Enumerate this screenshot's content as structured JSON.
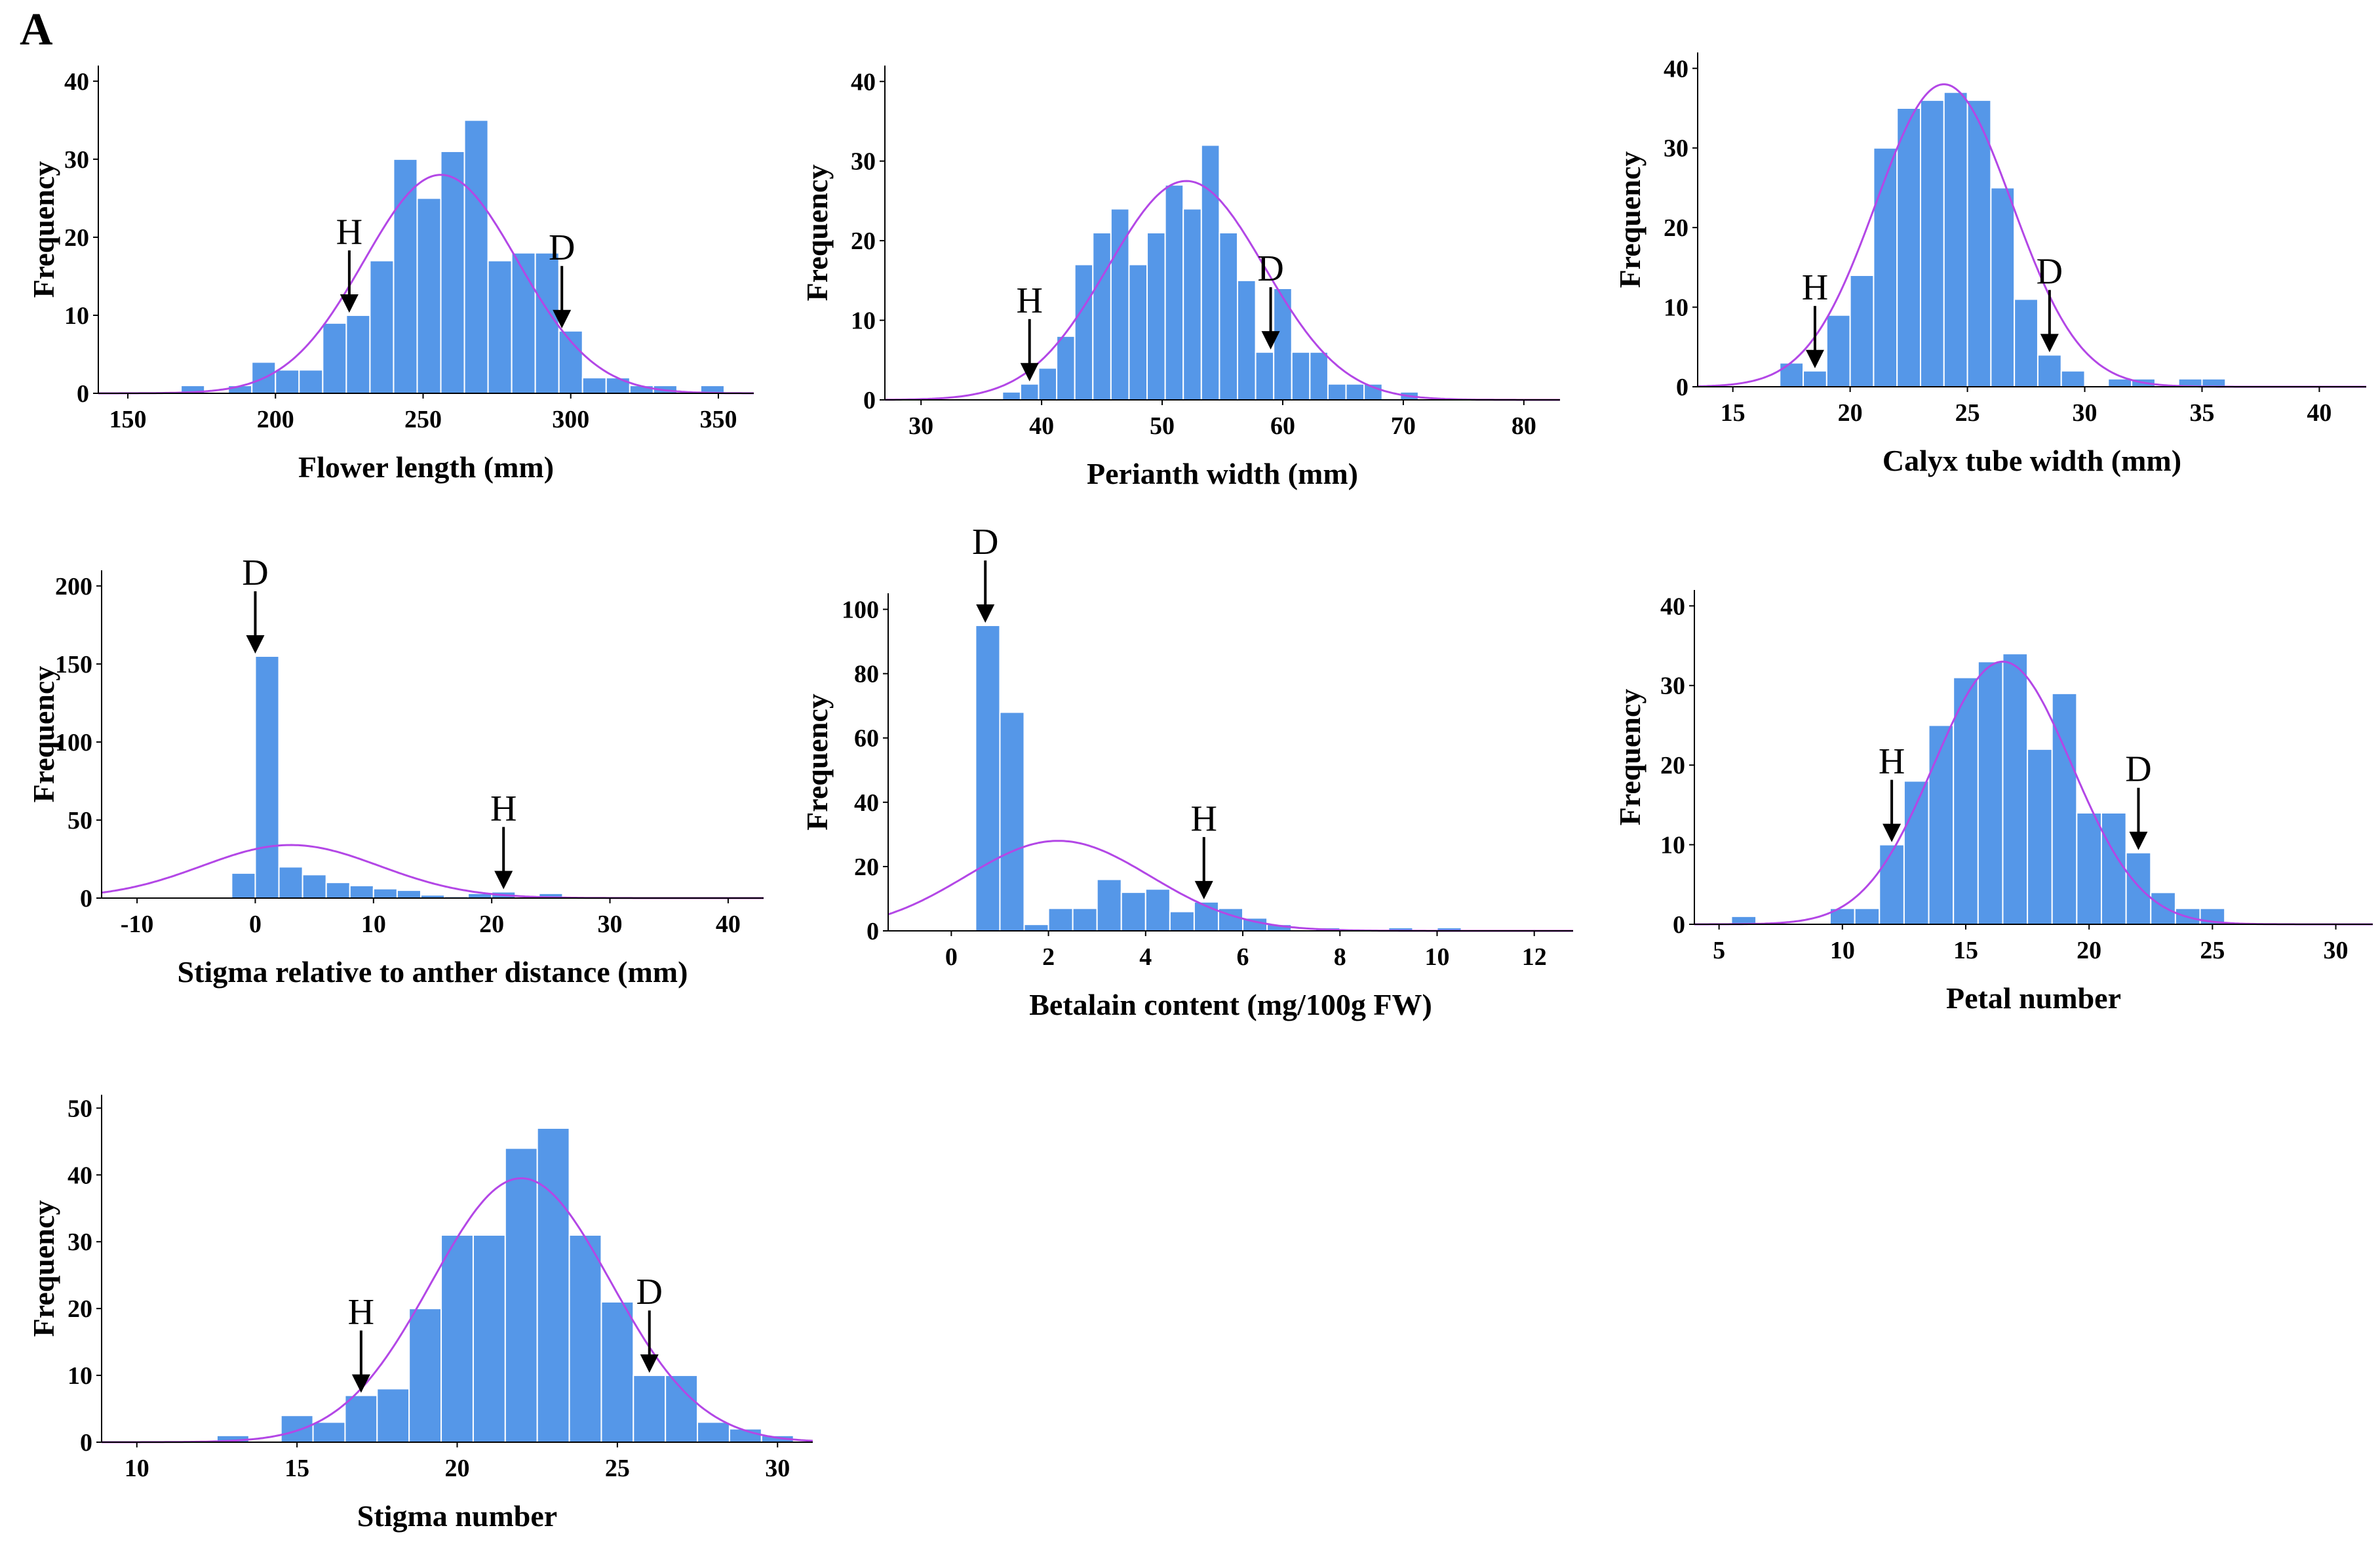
{
  "panel_label": "A",
  "style": {
    "bar_color": "#5597E8",
    "bar_edge": "#ffffff",
    "curve_color": "#B347E6",
    "axis_color": "#000000"
  },
  "chart_data": [
    {
      "id": "flower-length",
      "type": "bar",
      "subtype": "histogram-with-normal-curve",
      "xlabel": "Flower length (mm)",
      "ylabel": "Frequency",
      "xlim": [
        140,
        362
      ],
      "ylim": [
        0,
        42
      ],
      "xticks": [
        150,
        200,
        250,
        300,
        350
      ],
      "yticks": [
        0,
        10,
        20,
        30,
        40
      ],
      "bin_width": 8,
      "bins": [
        {
          "x": 172,
          "count": 1
        },
        {
          "x": 180,
          "count": 0
        },
        {
          "x": 188,
          "count": 1
        },
        {
          "x": 196,
          "count": 4
        },
        {
          "x": 204,
          "count": 3
        },
        {
          "x": 212,
          "count": 3
        },
        {
          "x": 220,
          "count": 9
        },
        {
          "x": 228,
          "count": 10
        },
        {
          "x": 236,
          "count": 17
        },
        {
          "x": 244,
          "count": 30
        },
        {
          "x": 252,
          "count": 25
        },
        {
          "x": 260,
          "count": 31
        },
        {
          "x": 268,
          "count": 35
        },
        {
          "x": 276,
          "count": 17
        },
        {
          "x": 284,
          "count": 18
        },
        {
          "x": 292,
          "count": 18
        },
        {
          "x": 300,
          "count": 8
        },
        {
          "x": 308,
          "count": 2
        },
        {
          "x": 316,
          "count": 2
        },
        {
          "x": 324,
          "count": 1
        },
        {
          "x": 332,
          "count": 1
        },
        {
          "x": 340,
          "count": 0
        },
        {
          "x": 348,
          "count": 1
        }
      ],
      "normal_curve": {
        "mean": 256,
        "sd": 26,
        "peak": 28
      },
      "markers": [
        {
          "label": "H",
          "x": 225,
          "y": 10
        },
        {
          "label": "D",
          "x": 297,
          "y": 8
        }
      ]
    },
    {
      "id": "perianth-width",
      "type": "bar",
      "subtype": "histogram-with-normal-curve",
      "xlabel": "Perianth width (mm)",
      "ylabel": "Frequency",
      "xlim": [
        27,
        83
      ],
      "ylim": [
        0,
        42
      ],
      "xticks": [
        30,
        40,
        50,
        60,
        70,
        80
      ],
      "yticks": [
        0,
        10,
        20,
        30,
        40
      ],
      "bin_width": 1.5,
      "bins": [
        {
          "x": 37.5,
          "count": 1
        },
        {
          "x": 39,
          "count": 2
        },
        {
          "x": 40.5,
          "count": 4
        },
        {
          "x": 42,
          "count": 8
        },
        {
          "x": 43.5,
          "count": 17
        },
        {
          "x": 45,
          "count": 21
        },
        {
          "x": 46.5,
          "count": 24
        },
        {
          "x": 48,
          "count": 17
        },
        {
          "x": 49.5,
          "count": 21
        },
        {
          "x": 51,
          "count": 27
        },
        {
          "x": 52.5,
          "count": 24
        },
        {
          "x": 54,
          "count": 32
        },
        {
          "x": 55.5,
          "count": 21
        },
        {
          "x": 57,
          "count": 15
        },
        {
          "x": 58.5,
          "count": 6
        },
        {
          "x": 60,
          "count": 14
        },
        {
          "x": 61.5,
          "count": 6
        },
        {
          "x": 63,
          "count": 6
        },
        {
          "x": 64.5,
          "count": 2
        },
        {
          "x": 66,
          "count": 2
        },
        {
          "x": 67.5,
          "count": 2
        },
        {
          "x": 69,
          "count": 0
        },
        {
          "x": 70.5,
          "count": 1
        }
      ],
      "normal_curve": {
        "mean": 52,
        "sd": 6.5,
        "peak": 27.5
      },
      "markers": [
        {
          "label": "H",
          "x": 39,
          "y": 2
        },
        {
          "label": "D",
          "x": 59,
          "y": 6
        }
      ]
    },
    {
      "id": "calyx-tube-width",
      "type": "bar",
      "subtype": "histogram-with-normal-curve",
      "xlabel": "Calyx tube width (mm)",
      "ylabel": "Frequency",
      "xlim": [
        13.5,
        42
      ],
      "ylim": [
        0,
        42
      ],
      "xticks": [
        15,
        20,
        25,
        30,
        35,
        40
      ],
      "yticks": [
        0,
        10,
        20,
        30,
        40
      ],
      "bin_width": 1,
      "bins": [
        {
          "x": 17.5,
          "count": 3
        },
        {
          "x": 18.5,
          "count": 2
        },
        {
          "x": 19.5,
          "count": 9
        },
        {
          "x": 20.5,
          "count": 14
        },
        {
          "x": 21.5,
          "count": 30
        },
        {
          "x": 22.5,
          "count": 35
        },
        {
          "x": 23.5,
          "count": 36
        },
        {
          "x": 24.5,
          "count": 37
        },
        {
          "x": 25.5,
          "count": 36
        },
        {
          "x": 26.5,
          "count": 25
        },
        {
          "x": 27.5,
          "count": 11
        },
        {
          "x": 28.5,
          "count": 4
        },
        {
          "x": 29.5,
          "count": 2
        },
        {
          "x": 30.5,
          "count": 0
        },
        {
          "x": 31.5,
          "count": 1
        },
        {
          "x": 32.5,
          "count": 1
        },
        {
          "x": 33.5,
          "count": 0
        },
        {
          "x": 34.5,
          "count": 1
        },
        {
          "x": 35.5,
          "count": 1
        }
      ],
      "normal_curve": {
        "mean": 24,
        "sd": 2.9,
        "peak": 38
      },
      "markers": [
        {
          "label": "H",
          "x": 18.5,
          "y": 2
        },
        {
          "label": "D",
          "x": 28.5,
          "y": 4
        }
      ]
    },
    {
      "id": "stigma-anther-distance",
      "type": "bar",
      "subtype": "histogram-with-normal-curve",
      "xlabel": "Stigma relative to anther distance (mm)",
      "ylabel": "Frequency",
      "xlim": [
        -13,
        43
      ],
      "ylim": [
        0,
        210
      ],
      "xticks": [
        -10,
        0,
        10,
        20,
        30,
        40
      ],
      "yticks": [
        0,
        50,
        100,
        150,
        200
      ],
      "bin_width": 2,
      "bins": [
        {
          "x": -1,
          "count": 16
        },
        {
          "x": 1,
          "count": 155
        },
        {
          "x": 3,
          "count": 20
        },
        {
          "x": 5,
          "count": 15
        },
        {
          "x": 7,
          "count": 10
        },
        {
          "x": 9,
          "count": 8
        },
        {
          "x": 11,
          "count": 6
        },
        {
          "x": 13,
          "count": 5
        },
        {
          "x": 15,
          "count": 2
        },
        {
          "x": 17,
          "count": 1
        },
        {
          "x": 19,
          "count": 3
        },
        {
          "x": 21,
          "count": 4
        },
        {
          "x": 23,
          "count": 0
        },
        {
          "x": 25,
          "count": 3
        },
        {
          "x": 37,
          "count": 1
        }
      ],
      "normal_curve": {
        "mean": 3,
        "sd": 7.5,
        "peak": 34
      },
      "markers": [
        {
          "label": "D",
          "x": 0,
          "y": 155
        },
        {
          "label": "H",
          "x": 21,
          "y": 4
        }
      ]
    },
    {
      "id": "betalain-content",
      "type": "bar",
      "subtype": "histogram-with-normal-curve",
      "xlabel": "Betalain content (mg/100g FW)",
      "ylabel": "Frequency",
      "xlim": [
        -1.3,
        12.8
      ],
      "ylim": [
        0,
        105
      ],
      "xticks": [
        0,
        2,
        4,
        6,
        8,
        10,
        12
      ],
      "yticks": [
        0,
        20,
        40,
        60,
        80,
        100
      ],
      "bin_width": 0.5,
      "bins": [
        {
          "x": 0.75,
          "count": 95
        },
        {
          "x": 1.25,
          "count": 68
        },
        {
          "x": 1.75,
          "count": 2
        },
        {
          "x": 2.25,
          "count": 7
        },
        {
          "x": 2.75,
          "count": 7
        },
        {
          "x": 3.25,
          "count": 16
        },
        {
          "x": 3.75,
          "count": 12
        },
        {
          "x": 4.25,
          "count": 13
        },
        {
          "x": 4.75,
          "count": 6
        },
        {
          "x": 5.25,
          "count": 9
        },
        {
          "x": 5.75,
          "count": 7
        },
        {
          "x": 6.25,
          "count": 4
        },
        {
          "x": 6.75,
          "count": 2
        },
        {
          "x": 7.25,
          "count": 0
        },
        {
          "x": 7.75,
          "count": 1
        },
        {
          "x": 9.25,
          "count": 1
        },
        {
          "x": 10.25,
          "count": 1
        }
      ],
      "normal_curve": {
        "mean": 2.2,
        "sd": 1.9,
        "peak": 28
      },
      "markers": [
        {
          "label": "D",
          "x": 0.7,
          "y": 95
        },
        {
          "label": "H",
          "x": 5.2,
          "y": 9
        }
      ]
    },
    {
      "id": "petal-number",
      "type": "bar",
      "subtype": "histogram-with-normal-curve",
      "xlabel": "Petal number",
      "ylabel": "Frequency",
      "xlim": [
        4,
        31.5
      ],
      "ylim": [
        0,
        42
      ],
      "xticks": [
        5,
        10,
        15,
        20,
        25,
        30
      ],
      "yticks": [
        0,
        10,
        20,
        30,
        40
      ],
      "bin_width": 1,
      "bins": [
        {
          "x": 6,
          "count": 1
        },
        {
          "x": 7,
          "count": 0
        },
        {
          "x": 8,
          "count": 0
        },
        {
          "x": 9,
          "count": 0
        },
        {
          "x": 10,
          "count": 2
        },
        {
          "x": 11,
          "count": 2
        },
        {
          "x": 12,
          "count": 10
        },
        {
          "x": 13,
          "count": 18
        },
        {
          "x": 14,
          "count": 25
        },
        {
          "x": 15,
          "count": 31
        },
        {
          "x": 16,
          "count": 33
        },
        {
          "x": 17,
          "count": 34
        },
        {
          "x": 18,
          "count": 22
        },
        {
          "x": 19,
          "count": 29
        },
        {
          "x": 20,
          "count": 14
        },
        {
          "x": 21,
          "count": 14
        },
        {
          "x": 22,
          "count": 9
        },
        {
          "x": 23,
          "count": 4
        },
        {
          "x": 24,
          "count": 2
        },
        {
          "x": 25,
          "count": 2
        }
      ],
      "normal_curve": {
        "mean": 16.5,
        "sd": 2.8,
        "peak": 33
      },
      "markers": [
        {
          "label": "H",
          "x": 12,
          "y": 10
        },
        {
          "label": "D",
          "x": 22,
          "y": 9
        }
      ]
    },
    {
      "id": "stigma-number",
      "type": "bar",
      "subtype": "histogram-with-normal-curve",
      "xlabel": "Stigma number",
      "ylabel": "Frequency",
      "xlim": [
        8.9,
        31.1
      ],
      "ylim": [
        0,
        52
      ],
      "xticks": [
        10,
        15,
        20,
        25,
        30
      ],
      "yticks": [
        0,
        10,
        20,
        30,
        40,
        50
      ],
      "bin_width": 1,
      "bins": [
        {
          "x": 13,
          "count": 1
        },
        {
          "x": 14,
          "count": 0
        },
        {
          "x": 15,
          "count": 4
        },
        {
          "x": 16,
          "count": 3
        },
        {
          "x": 17,
          "count": 7
        },
        {
          "x": 18,
          "count": 8
        },
        {
          "x": 19,
          "count": 20
        },
        {
          "x": 20,
          "count": 31
        },
        {
          "x": 21,
          "count": 31
        },
        {
          "x": 22,
          "count": 44
        },
        {
          "x": 23,
          "count": 47
        },
        {
          "x": 24,
          "count": 31
        },
        {
          "x": 25,
          "count": 21
        },
        {
          "x": 26,
          "count": 10
        },
        {
          "x": 27,
          "count": 10
        },
        {
          "x": 28,
          "count": 3
        },
        {
          "x": 29,
          "count": 2
        },
        {
          "x": 30,
          "count": 1
        }
      ],
      "normal_curve": {
        "mean": 22,
        "sd": 2.8,
        "peak": 39.5
      },
      "markers": [
        {
          "label": "H",
          "x": 17,
          "y": 7
        },
        {
          "label": "D",
          "x": 26,
          "y": 10
        }
      ]
    }
  ]
}
